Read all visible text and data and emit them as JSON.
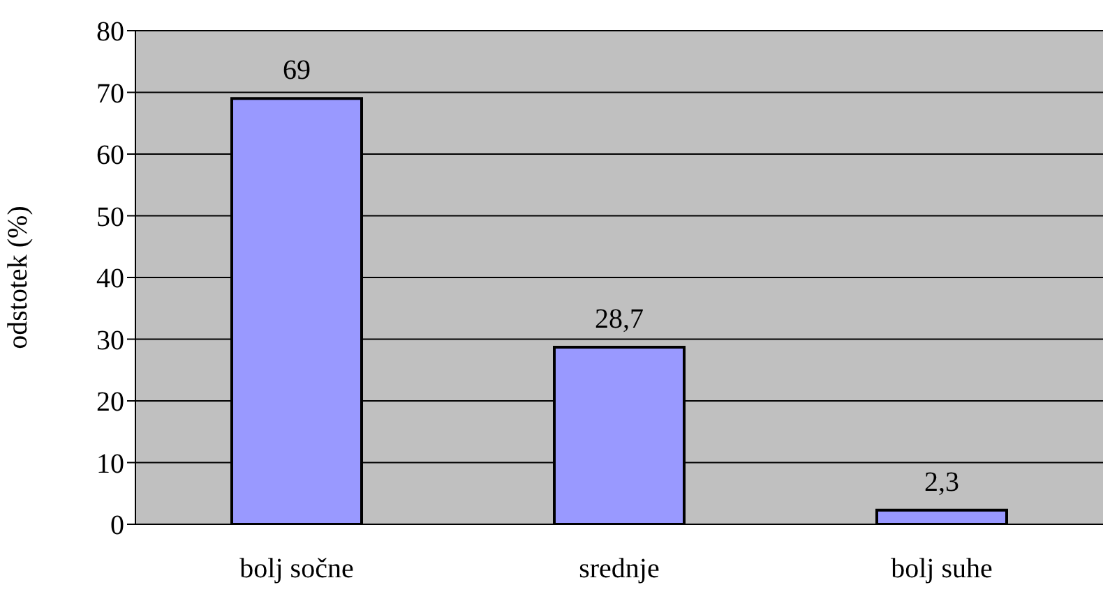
{
  "chart_data": {
    "type": "bar",
    "ylabel": "odstotek (%)",
    "categories": [
      "bolj sočne",
      "srednje",
      "bolj suhe"
    ],
    "values": [
      69,
      28.7,
      2.3
    ],
    "value_labels": [
      "69",
      "28,7",
      "2,3"
    ],
    "color": "#9999ff",
    "ylim": [
      0,
      80
    ],
    "yticks": [
      0,
      10,
      20,
      30,
      40,
      50,
      60,
      70,
      80
    ],
    "grid": "y"
  }
}
